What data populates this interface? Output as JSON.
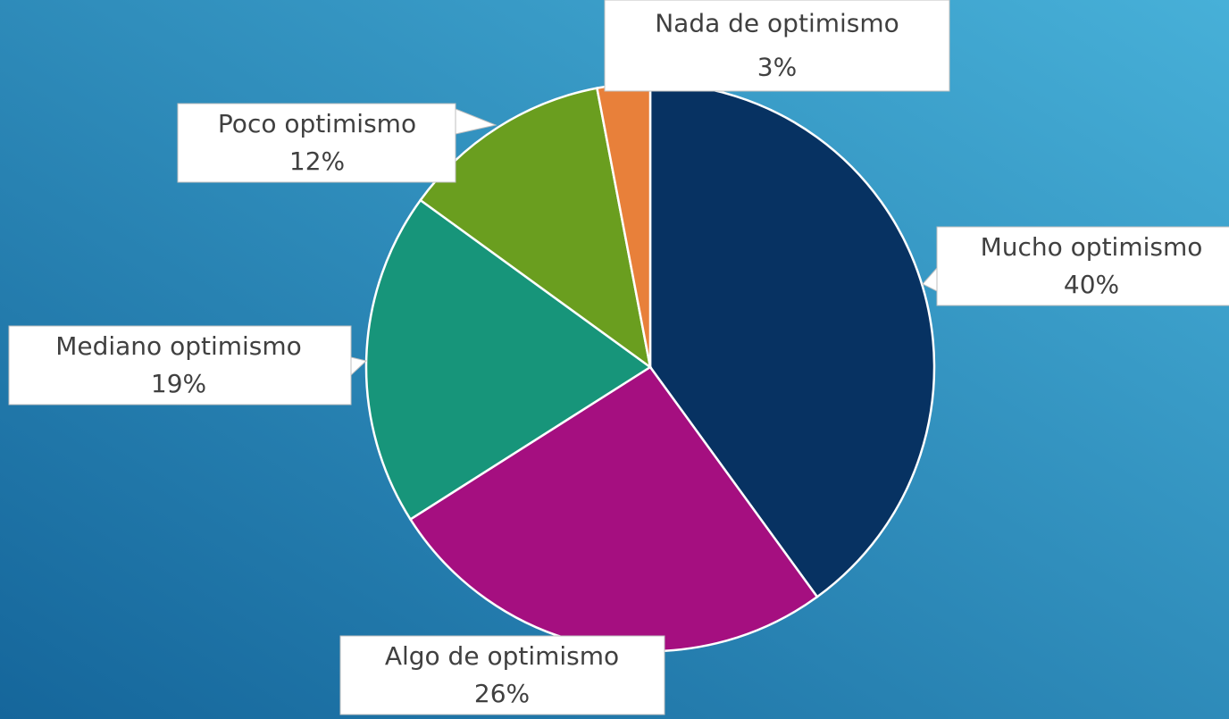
{
  "chart_data": {
    "type": "pie",
    "categories": [
      "Mucho optimismo",
      "Algo de optimismo",
      "Mediano optimismo",
      "Poco optimismo",
      "Nada de optimismo"
    ],
    "values": [
      40,
      26,
      19,
      12,
      3
    ],
    "value_labels": [
      "40%",
      "26%",
      "19%",
      "12%",
      "3%"
    ],
    "colors": [
      "#073262",
      "#a50f80",
      "#17957a",
      "#6a9e1f",
      "#e8803a"
    ]
  }
}
